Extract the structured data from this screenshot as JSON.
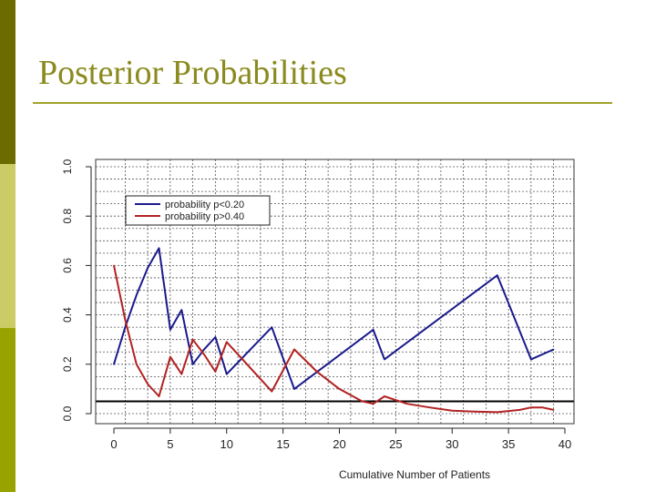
{
  "slide": {
    "title": "Posterior Probabilities"
  },
  "colors": {
    "sidebar": [
      "#6b6b00",
      "#cccc66",
      "#99a300"
    ],
    "title": "#8a8a1e"
  },
  "chart_data": {
    "type": "line",
    "title": "",
    "xlabel": "Cumulative Number of Patients",
    "ylabel": "",
    "xlim": [
      0,
      40
    ],
    "ylim": [
      0,
      1
    ],
    "x_ticks": [
      "0",
      "5",
      "10",
      "15",
      "20",
      "25",
      "30",
      "35",
      "40"
    ],
    "y_ticks": [
      "0.0",
      "0.2",
      "0.4",
      "0.6",
      "0.8",
      "1.0"
    ],
    "grid": true,
    "legend_position": "top-left",
    "reference_line": {
      "y": 0.05
    },
    "series": [
      {
        "name": "probability p<0.20",
        "color": "#1a1a8c",
        "x": [
          0,
          1,
          2,
          3,
          4,
          5,
          6,
          7,
          8,
          9,
          10,
          14,
          16,
          23,
          24,
          34,
          37,
          39
        ],
        "y": [
          0.2,
          0.35,
          0.48,
          0.59,
          0.67,
          0.34,
          0.42,
          0.2,
          0.26,
          0.31,
          0.16,
          0.35,
          0.1,
          0.34,
          0.22,
          0.56,
          0.22,
          0.26
        ]
      },
      {
        "name": "probability p>0.40",
        "color": "#b22222",
        "x": [
          0,
          1,
          2,
          3,
          4,
          5,
          6,
          7,
          8,
          9,
          10,
          14,
          16,
          18,
          20,
          22,
          23,
          24,
          26,
          28,
          30,
          32,
          34,
          36,
          37,
          38,
          39
        ],
        "y": [
          0.6,
          0.38,
          0.2,
          0.12,
          0.07,
          0.23,
          0.16,
          0.3,
          0.24,
          0.17,
          0.29,
          0.09,
          0.26,
          0.17,
          0.1,
          0.05,
          0.04,
          0.07,
          0.04,
          0.025,
          0.012,
          0.008,
          0.006,
          0.015,
          0.025,
          0.025,
          0.015
        ]
      }
    ]
  }
}
